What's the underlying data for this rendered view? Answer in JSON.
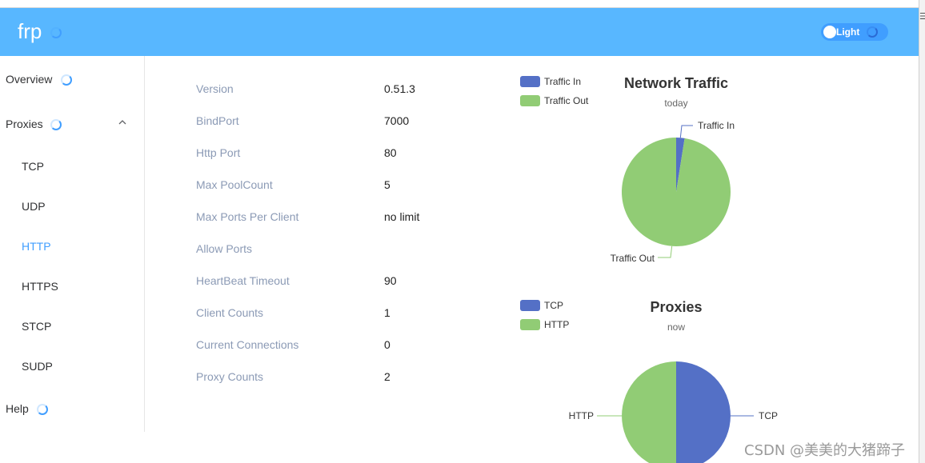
{
  "gutter_mark": "☰",
  "header": {
    "brand": "frp",
    "theme_toggle_label": "Light",
    "bg_color": "#58b7ff"
  },
  "sidebar": {
    "overview": "Overview",
    "proxies": "Proxies",
    "proxy_types": [
      "TCP",
      "UDP",
      "HTTP",
      "HTTPS",
      "STCP",
      "SUDP"
    ],
    "active_proxy_type": "HTTP",
    "help": "Help"
  },
  "server_info": [
    {
      "label": "Version",
      "value": "0.51.3"
    },
    {
      "label": "BindPort",
      "value": "7000"
    },
    {
      "label": "Http Port",
      "value": "80"
    },
    {
      "label": "Max PoolCount",
      "value": "5"
    },
    {
      "label": "Max Ports Per Client",
      "value": "no limit"
    },
    {
      "label": "Allow Ports",
      "value": ""
    },
    {
      "label": "HeartBeat Timeout",
      "value": "90"
    },
    {
      "label": "Client Counts",
      "value": "1"
    },
    {
      "label": "Current Connections",
      "value": "0"
    },
    {
      "label": "Proxy Counts",
      "value": "2"
    }
  ],
  "chart_data": [
    {
      "type": "pie",
      "title": "Network Traffic",
      "subtitle": "today",
      "categories": [
        "Traffic In",
        "Traffic Out"
      ],
      "values": [
        2.5,
        97.5
      ],
      "colors": [
        "#5470c6",
        "#91cc75"
      ],
      "legend": [
        "Traffic In",
        "Traffic Out"
      ],
      "legend_position": "top-left"
    },
    {
      "type": "pie",
      "title": "Proxies",
      "subtitle": "now",
      "categories": [
        "TCP",
        "HTTP"
      ],
      "values": [
        1,
        1
      ],
      "colors": [
        "#5470c6",
        "#91cc75"
      ],
      "legend": [
        "TCP",
        "HTTP"
      ],
      "legend_position": "top-left"
    }
  ],
  "watermark": "CSDN @美美的大猪蹄子"
}
